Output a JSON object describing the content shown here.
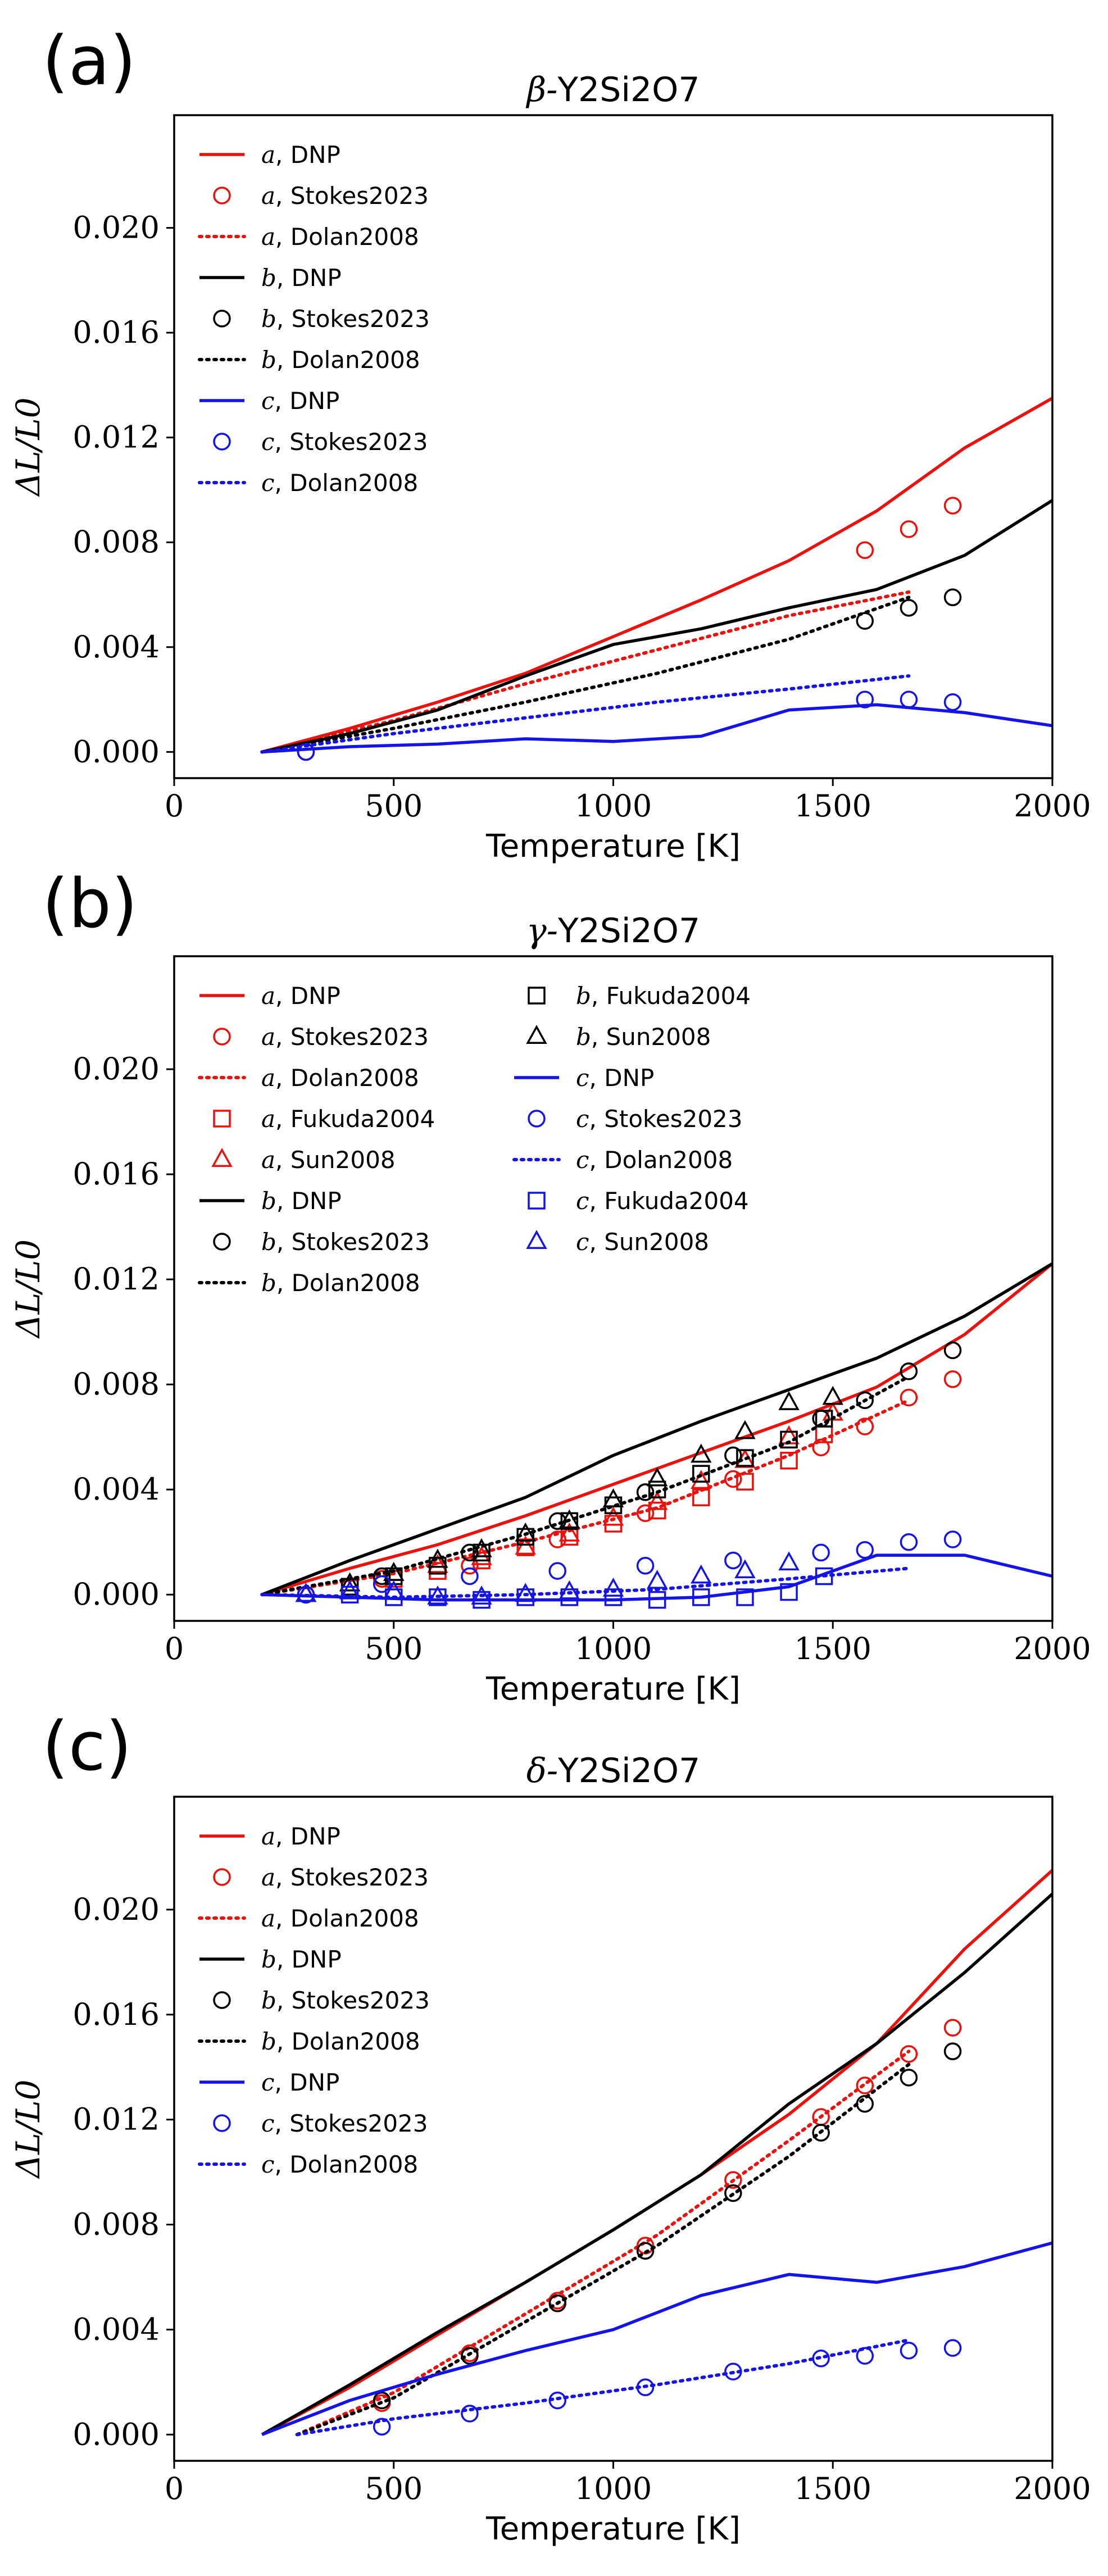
{
  "colors": {
    "a": "#e8120e",
    "b": "#000000",
    "c": "#1414e8"
  },
  "panels": [
    {
      "letter": "(a)",
      "title_prefix": "β-",
      "title_formula": "Y2Si2O7",
      "xlabel": "Temperature [K]",
      "ylabel": "ΔL/L0",
      "xlim": [
        0,
        2000
      ],
      "ylim": [
        -0.001,
        0.0243
      ],
      "xticks": [
        0,
        500,
        1000,
        1500,
        2000
      ],
      "xtick_labels": [
        "0",
        "500",
        "1000",
        "1500",
        "2000"
      ],
      "yticks": [
        0.0,
        0.004,
        0.008,
        0.012,
        0.016,
        0.02
      ],
      "ytick_labels": [
        "0.000",
        "0.004",
        "0.008",
        "0.012",
        "0.016",
        "0.020"
      ],
      "legend_columns": 1,
      "series": [
        {
          "axis": "a",
          "source": "DNP",
          "style": "solid",
          "x": [
            200,
            400,
            600,
            800,
            1000,
            1200,
            1400,
            1600,
            1800,
            2000
          ],
          "y": [
            0.0,
            0.0009,
            0.0019,
            0.003,
            0.0044,
            0.0058,
            0.0073,
            0.0092,
            0.0116,
            0.0135
          ]
        },
        {
          "axis": "a",
          "source": "Stokes2023",
          "style": "circle",
          "x": [
            300,
            1573,
            1673,
            1773
          ],
          "y": [
            0.0,
            0.0077,
            0.0085,
            0.0094
          ]
        },
        {
          "axis": "a",
          "source": "Dolan2008",
          "style": "dotted",
          "x": [
            200,
            500,
            800,
            1100,
            1400,
            1673
          ],
          "y": [
            0.0,
            0.0012,
            0.0026,
            0.0039,
            0.0052,
            0.0061
          ]
        },
        {
          "axis": "b",
          "source": "DNP",
          "style": "solid",
          "x": [
            200,
            400,
            600,
            800,
            1000,
            1200,
            1400,
            1600,
            1800,
            2000
          ],
          "y": [
            0.0,
            0.0007,
            0.0016,
            0.0029,
            0.0041,
            0.0047,
            0.0055,
            0.0062,
            0.0075,
            0.0096
          ]
        },
        {
          "axis": "b",
          "source": "Stokes2023",
          "style": "circle",
          "x": [
            300,
            1573,
            1673,
            1773
          ],
          "y": [
            0.0,
            0.005,
            0.0055,
            0.0059
          ]
        },
        {
          "axis": "b",
          "source": "Dolan2008",
          "style": "dotted",
          "x": [
            200,
            500,
            800,
            1100,
            1400,
            1673
          ],
          "y": [
            0.0,
            0.0009,
            0.0019,
            0.003,
            0.0043,
            0.0059
          ]
        },
        {
          "axis": "c",
          "source": "DNP",
          "style": "solid",
          "x": [
            200,
            400,
            600,
            800,
            1000,
            1200,
            1400,
            1600,
            1800,
            2000
          ],
          "y": [
            0.0,
            0.0002,
            0.0003,
            0.0005,
            0.0004,
            0.0006,
            0.0016,
            0.0018,
            0.0015,
            0.001
          ]
        },
        {
          "axis": "c",
          "source": "Stokes2023",
          "style": "circle",
          "x": [
            300,
            1573,
            1673,
            1773
          ],
          "y": [
            0.0,
            0.002,
            0.002,
            0.0019
          ]
        },
        {
          "axis": "c",
          "source": "Dolan2008",
          "style": "dotted",
          "x": [
            200,
            500,
            800,
            1100,
            1400,
            1673
          ],
          "y": [
            0.0,
            0.0007,
            0.0013,
            0.0019,
            0.0024,
            0.0029
          ]
        }
      ]
    },
    {
      "letter": "(b)",
      "title_prefix": "γ-",
      "title_formula": "Y2Si2O7",
      "xlabel": "Temperature [K]",
      "ylabel": "ΔL/L0",
      "xlim": [
        0,
        2000
      ],
      "ylim": [
        -0.001,
        0.0243
      ],
      "xticks": [
        0,
        500,
        1000,
        1500,
        2000
      ],
      "xtick_labels": [
        "0",
        "500",
        "1000",
        "1500",
        "2000"
      ],
      "yticks": [
        0.0,
        0.004,
        0.008,
        0.012,
        0.016,
        0.02
      ],
      "ytick_labels": [
        "0.000",
        "0.004",
        "0.008",
        "0.012",
        "0.016",
        "0.020"
      ],
      "legend_columns": 2,
      "series": [
        {
          "axis": "a",
          "source": "DNP",
          "style": "solid",
          "x": [
            200,
            400,
            600,
            800,
            1000,
            1200,
            1400,
            1600,
            1800,
            2000
          ],
          "y": [
            0.0,
            0.001,
            0.0019,
            0.003,
            0.0042,
            0.0054,
            0.0066,
            0.0079,
            0.0099,
            0.0126
          ]
        },
        {
          "axis": "a",
          "source": "Stokes2023",
          "style": "circle",
          "x": [
            300,
            473,
            673,
            873,
            1073,
            1273,
            1473,
            1573,
            1673,
            1773
          ],
          "y": [
            0.0,
            0.0006,
            0.0011,
            0.0021,
            0.0031,
            0.0044,
            0.0056,
            0.0064,
            0.0075,
            0.0082
          ]
        },
        {
          "axis": "a",
          "source": "Dolan2008",
          "style": "dotted",
          "x": [
            200,
            500,
            800,
            1100,
            1400,
            1673
          ],
          "y": [
            0.0,
            0.0008,
            0.002,
            0.0033,
            0.0053,
            0.0074
          ]
        },
        {
          "axis": "a",
          "source": "Fukuda2004",
          "style": "square",
          "x": [
            400,
            500,
            600,
            700,
            800,
            900,
            1000,
            1100,
            1200,
            1300,
            1400,
            1480
          ],
          "y": [
            0.0003,
            0.0006,
            0.0009,
            0.0013,
            0.0018,
            0.0022,
            0.0027,
            0.0032,
            0.0037,
            0.0043,
            0.0051,
            0.0061
          ]
        },
        {
          "axis": "a",
          "source": "Sun2008",
          "style": "triangle",
          "x": [
            300,
            400,
            500,
            600,
            700,
            800,
            900,
            1000,
            1100,
            1200,
            1300,
            1400,
            1500
          ],
          "y": [
            0.0,
            0.0004,
            0.0008,
            0.0011,
            0.0014,
            0.0018,
            0.0023,
            0.0029,
            0.0035,
            0.0043,
            0.0051,
            0.006,
            0.0069
          ]
        },
        {
          "axis": "b",
          "source": "DNP",
          "style": "solid",
          "x": [
            200,
            400,
            600,
            800,
            1000,
            1200,
            1400,
            1600,
            1800,
            2000
          ],
          "y": [
            0.0,
            0.0013,
            0.0025,
            0.0037,
            0.0053,
            0.0066,
            0.0078,
            0.009,
            0.0106,
            0.0126
          ]
        },
        {
          "axis": "b",
          "source": "Stokes2023",
          "style": "circle",
          "x": [
            300,
            473,
            673,
            873,
            1073,
            1273,
            1473,
            1573,
            1673,
            1773
          ],
          "y": [
            0.0,
            0.0007,
            0.0016,
            0.0028,
            0.0039,
            0.0053,
            0.0067,
            0.0074,
            0.0085,
            0.0093
          ]
        },
        {
          "axis": "b",
          "source": "Dolan2008",
          "style": "dotted",
          "x": [
            200,
            500,
            800,
            1100,
            1400,
            1673
          ],
          "y": [
            0.0,
            0.0009,
            0.0023,
            0.0039,
            0.0058,
            0.0083
          ]
        },
        {
          "axis": "b",
          "source": "Fukuda2004",
          "style": "square",
          "x": [
            400,
            500,
            600,
            700,
            800,
            900,
            1000,
            1100,
            1200,
            1300,
            1400,
            1480
          ],
          "y": [
            0.0003,
            0.0007,
            0.0011,
            0.0016,
            0.0022,
            0.0028,
            0.0034,
            0.004,
            0.0046,
            0.0052,
            0.0059,
            0.0067
          ]
        },
        {
          "axis": "b",
          "source": "Sun2008",
          "style": "triangle",
          "x": [
            300,
            400,
            500,
            600,
            700,
            800,
            900,
            1000,
            1100,
            1200,
            1300,
            1400,
            1500
          ],
          "y": [
            0.0,
            0.0004,
            0.0008,
            0.0013,
            0.0017,
            0.0023,
            0.0028,
            0.0036,
            0.0044,
            0.0053,
            0.0062,
            0.0073,
            0.0075
          ]
        },
        {
          "axis": "c",
          "source": "DNP",
          "style": "solid",
          "x": [
            200,
            400,
            600,
            800,
            1000,
            1200,
            1400,
            1600,
            1800,
            2000
          ],
          "y": [
            0.0,
            -0.0001,
            -0.0002,
            -0.0002,
            -0.0002,
            -0.0001,
            0.0003,
            0.0015,
            0.0015,
            0.0007
          ]
        },
        {
          "axis": "c",
          "source": "Stokes2023",
          "style": "circle",
          "x": [
            300,
            473,
            673,
            873,
            1073,
            1273,
            1473,
            1573,
            1673,
            1773
          ],
          "y": [
            0.0,
            0.0004,
            0.0007,
            0.0009,
            0.0011,
            0.0013,
            0.0016,
            0.0017,
            0.002,
            0.0021
          ]
        },
        {
          "axis": "c",
          "source": "Dolan2008",
          "style": "dotted",
          "x": [
            200,
            500,
            800,
            1100,
            1400,
            1673
          ],
          "y": [
            0.0,
            -0.0001,
            0.0,
            0.0002,
            0.0006,
            0.001
          ]
        },
        {
          "axis": "c",
          "source": "Fukuda2004",
          "style": "square",
          "x": [
            400,
            500,
            600,
            700,
            800,
            900,
            1000,
            1100,
            1200,
            1300,
            1400,
            1480
          ],
          "y": [
            0.0,
            -0.0001,
            -0.0001,
            -0.0002,
            -0.0001,
            -0.0001,
            -0.0001,
            -0.0002,
            -0.0001,
            -0.0001,
            0.0001,
            0.0007
          ]
        },
        {
          "axis": "c",
          "source": "Sun2008",
          "style": "triangle",
          "x": [
            300,
            400,
            500,
            600,
            700,
            800,
            900,
            1000,
            1100,
            1200,
            1300,
            1400
          ],
          "y": [
            0.0,
            0.0001,
            0.0001,
            -0.0001,
            -0.0001,
            0.0,
            0.0001,
            0.0002,
            0.0005,
            0.0007,
            0.0009,
            0.0012
          ]
        }
      ]
    },
    {
      "letter": "(c)",
      "title_prefix": "δ-",
      "title_formula": "Y2Si2O7",
      "xlabel": "Temperature [K]",
      "ylabel": "ΔL/L0",
      "xlim": [
        0,
        2000
      ],
      "ylim": [
        -0.001,
        0.0243
      ],
      "xticks": [
        0,
        500,
        1000,
        1500,
        2000
      ],
      "xtick_labels": [
        "0",
        "500",
        "1000",
        "1500",
        "2000"
      ],
      "yticks": [
        0.0,
        0.004,
        0.008,
        0.012,
        0.016,
        0.02
      ],
      "ytick_labels": [
        "0.000",
        "0.004",
        "0.008",
        "0.012",
        "0.016",
        "0.020"
      ],
      "legend_columns": 1,
      "series": [
        {
          "axis": "a",
          "source": "DNP",
          "style": "solid",
          "x": [
            200,
            400,
            600,
            800,
            1000,
            1200,
            1400,
            1600,
            1800,
            2000
          ],
          "y": [
            0.0,
            0.0018,
            0.0038,
            0.0058,
            0.0078,
            0.0099,
            0.0122,
            0.0149,
            0.0185,
            0.0215
          ]
        },
        {
          "axis": "a",
          "source": "Stokes2023",
          "style": "circle",
          "x": [
            473,
            673,
            873,
            1073,
            1273,
            1473,
            1573,
            1673,
            1773
          ],
          "y": [
            0.0012,
            0.0031,
            0.0051,
            0.0072,
            0.0097,
            0.0121,
            0.0133,
            0.0145,
            0.0155
          ]
        },
        {
          "axis": "a",
          "source": "Dolan2008",
          "style": "dotted",
          "x": [
            280,
            500,
            800,
            1100,
            1400,
            1673
          ],
          "y": [
            0.0,
            0.0016,
            0.0046,
            0.0076,
            0.0112,
            0.0146
          ]
        },
        {
          "axis": "b",
          "source": "DNP",
          "style": "solid",
          "x": [
            200,
            400,
            600,
            800,
            1000,
            1200,
            1400,
            1600,
            1800,
            2000
          ],
          "y": [
            0.0,
            0.0019,
            0.0039,
            0.0058,
            0.0078,
            0.0099,
            0.0126,
            0.0149,
            0.0176,
            0.0206
          ]
        },
        {
          "axis": "b",
          "source": "Stokes2023",
          "style": "circle",
          "x": [
            473,
            673,
            873,
            1073,
            1273,
            1473,
            1573,
            1673,
            1773
          ],
          "y": [
            0.0013,
            0.003,
            0.005,
            0.007,
            0.0092,
            0.0115,
            0.0126,
            0.0136,
            0.0146
          ]
        },
        {
          "axis": "b",
          "source": "Dolan2008",
          "style": "dotted",
          "x": [
            280,
            500,
            800,
            1100,
            1400,
            1673
          ],
          "y": [
            0.0,
            0.0014,
            0.0043,
            0.0072,
            0.0106,
            0.0141
          ]
        },
        {
          "axis": "c",
          "source": "DNP",
          "style": "solid",
          "x": [
            200,
            400,
            600,
            800,
            1000,
            1200,
            1400,
            1600,
            1800,
            2000
          ],
          "y": [
            0.0,
            0.0013,
            0.0023,
            0.0032,
            0.004,
            0.0053,
            0.0061,
            0.0058,
            0.0064,
            0.0073
          ]
        },
        {
          "axis": "c",
          "source": "Stokes2023",
          "style": "circle",
          "x": [
            473,
            673,
            873,
            1073,
            1273,
            1473,
            1573,
            1673,
            1773
          ],
          "y": [
            0.0003,
            0.0008,
            0.0013,
            0.0018,
            0.0024,
            0.0029,
            0.003,
            0.0032,
            0.0033
          ]
        },
        {
          "axis": "c",
          "source": "Dolan2008",
          "style": "dotted",
          "x": [
            280,
            500,
            800,
            1100,
            1400,
            1673
          ],
          "y": [
            0.0,
            0.0006,
            0.0012,
            0.0019,
            0.0027,
            0.0036
          ]
        }
      ]
    }
  ]
}
